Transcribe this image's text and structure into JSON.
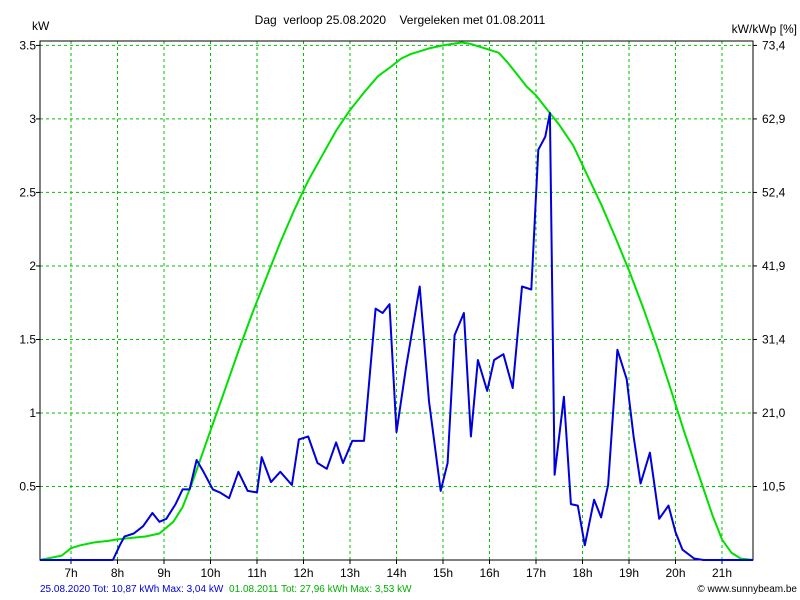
{
  "chart_data": {
    "type": "line",
    "title": "Dag  verloop 25.08.2020    Vergeleken met 01.08.2011",
    "ylabel_left": "kW",
    "ylabel_right": "kW/kWp [%]",
    "xlim": [
      6.333,
      21.667
    ],
    "ylim": [
      0,
      3.53
    ],
    "grid": true,
    "x_ticks": [
      {
        "x": 7,
        "label": "7h"
      },
      {
        "x": 8,
        "label": "8h"
      },
      {
        "x": 9,
        "label": "9h"
      },
      {
        "x": 10,
        "label": "10h"
      },
      {
        "x": 11,
        "label": "11h"
      },
      {
        "x": 12,
        "label": "12h"
      },
      {
        "x": 13,
        "label": "13h"
      },
      {
        "x": 14,
        "label": "14h"
      },
      {
        "x": 15,
        "label": "15h"
      },
      {
        "x": 16,
        "label": "16h"
      },
      {
        "x": 17,
        "label": "17h"
      },
      {
        "x": 18,
        "label": "18h"
      },
      {
        "x": 19,
        "label": "19h"
      },
      {
        "x": 20,
        "label": "20h"
      },
      {
        "x": 21,
        "label": "21h"
      }
    ],
    "y_ticks_left": [
      {
        "y": 0.5,
        "label": "0.5"
      },
      {
        "y": 1,
        "label": "1"
      },
      {
        "y": 1.5,
        "label": "1.5"
      },
      {
        "y": 2,
        "label": "2"
      },
      {
        "y": 2.5,
        "label": "2.5"
      },
      {
        "y": 3,
        "label": "3"
      },
      {
        "y": 3.5,
        "label": "3.5"
      }
    ],
    "y_ticks_right": [
      {
        "y": 0.5,
        "label": "10,5"
      },
      {
        "y": 1,
        "label": "21,0"
      },
      {
        "y": 1.5,
        "label": "31,4"
      },
      {
        "y": 2,
        "label": "41,9"
      },
      {
        "y": 2.5,
        "label": "52,4"
      },
      {
        "y": 3,
        "label": "62,9"
      },
      {
        "y": 3.5,
        "label": "73,4"
      }
    ],
    "series": [
      {
        "name": "01.08.2011",
        "color": "#00e000",
        "x": [
          6.333,
          6.8,
          7.0,
          7.2,
          7.5,
          7.8,
          8.0,
          8.3,
          8.6,
          8.9,
          9.2,
          9.4,
          9.6,
          9.8,
          10.0,
          10.3,
          10.6,
          10.9,
          11.2,
          11.5,
          11.8,
          12.1,
          12.4,
          12.7,
          13.0,
          13.3,
          13.6,
          13.9,
          14.1,
          14.3,
          14.5,
          14.7,
          15.0,
          15.2,
          15.4,
          15.6,
          15.8,
          16.0,
          16.2,
          16.4,
          16.6,
          16.8,
          17.0,
          17.2,
          17.5,
          17.8,
          18.1,
          18.4,
          18.7,
          19.0,
          19.3,
          19.6,
          19.9,
          20.2,
          20.5,
          20.8,
          21.0,
          21.2,
          21.4,
          21.667
        ],
        "values": [
          0,
          0.03,
          0.08,
          0.1,
          0.12,
          0.13,
          0.14,
          0.15,
          0.16,
          0.18,
          0.26,
          0.36,
          0.52,
          0.7,
          0.88,
          1.15,
          1.42,
          1.68,
          1.92,
          2.16,
          2.38,
          2.58,
          2.75,
          2.92,
          3.06,
          3.18,
          3.29,
          3.36,
          3.41,
          3.44,
          3.46,
          3.48,
          3.5,
          3.51,
          3.52,
          3.51,
          3.49,
          3.47,
          3.45,
          3.38,
          3.3,
          3.22,
          3.16,
          3.08,
          2.96,
          2.82,
          2.62,
          2.42,
          2.2,
          1.97,
          1.72,
          1.45,
          1.16,
          0.86,
          0.58,
          0.3,
          0.14,
          0.05,
          0.01,
          0
        ]
      },
      {
        "name": "25.08.2020",
        "color": "#0000dd",
        "x": [
          6.333,
          7.9,
          8.05,
          8.15,
          8.35,
          8.55,
          8.75,
          8.9,
          9.05,
          9.25,
          9.4,
          9.55,
          9.7,
          9.85,
          10.05,
          10.2,
          10.4,
          10.6,
          10.8,
          11.0,
          11.1,
          11.3,
          11.5,
          11.75,
          11.9,
          12.1,
          12.3,
          12.5,
          12.7,
          12.85,
          13.05,
          13.3,
          13.55,
          13.7,
          13.85,
          14.0,
          14.2,
          14.5,
          14.7,
          14.95,
          15.1,
          15.25,
          15.45,
          15.6,
          15.75,
          15.95,
          16.1,
          16.3,
          16.5,
          16.7,
          16.9,
          17.05,
          17.2,
          17.3,
          17.4,
          17.6,
          17.75,
          17.9,
          18.05,
          18.25,
          18.4,
          18.55,
          18.75,
          18.95,
          19.1,
          19.25,
          19.45,
          19.65,
          19.85,
          20.0,
          20.15,
          20.4,
          20.6,
          20.8,
          20.95,
          21.667
        ],
        "values": [
          0,
          0,
          0.1,
          0.16,
          0.18,
          0.23,
          0.32,
          0.26,
          0.28,
          0.38,
          0.48,
          0.48,
          0.68,
          0.6,
          0.48,
          0.46,
          0.42,
          0.6,
          0.47,
          0.46,
          0.7,
          0.53,
          0.6,
          0.51,
          0.82,
          0.84,
          0.66,
          0.62,
          0.8,
          0.66,
          0.81,
          0.81,
          1.71,
          1.68,
          1.74,
          0.87,
          1.3,
          1.86,
          1.08,
          0.47,
          0.66,
          1.53,
          1.68,
          0.84,
          1.36,
          1.15,
          1.36,
          1.4,
          1.17,
          1.86,
          1.84,
          2.79,
          2.88,
          3.04,
          0.58,
          1.11,
          0.38,
          0.37,
          0.1,
          0.41,
          0.29,
          0.51,
          1.43,
          1.23,
          0.84,
          0.52,
          0.73,
          0.28,
          0.37,
          0.19,
          0.07,
          0.01,
          0,
          0,
          0,
          0
        ]
      }
    ],
    "footer": {
      "blue_text": "25.08.2020 Tot: 10,87 kWh Max: 3,04 kW",
      "green_text": "01.08.2011 Tot: 27,96 kWh Max: 3,53 kW",
      "credit": "© www.sunnybeam.be"
    }
  }
}
